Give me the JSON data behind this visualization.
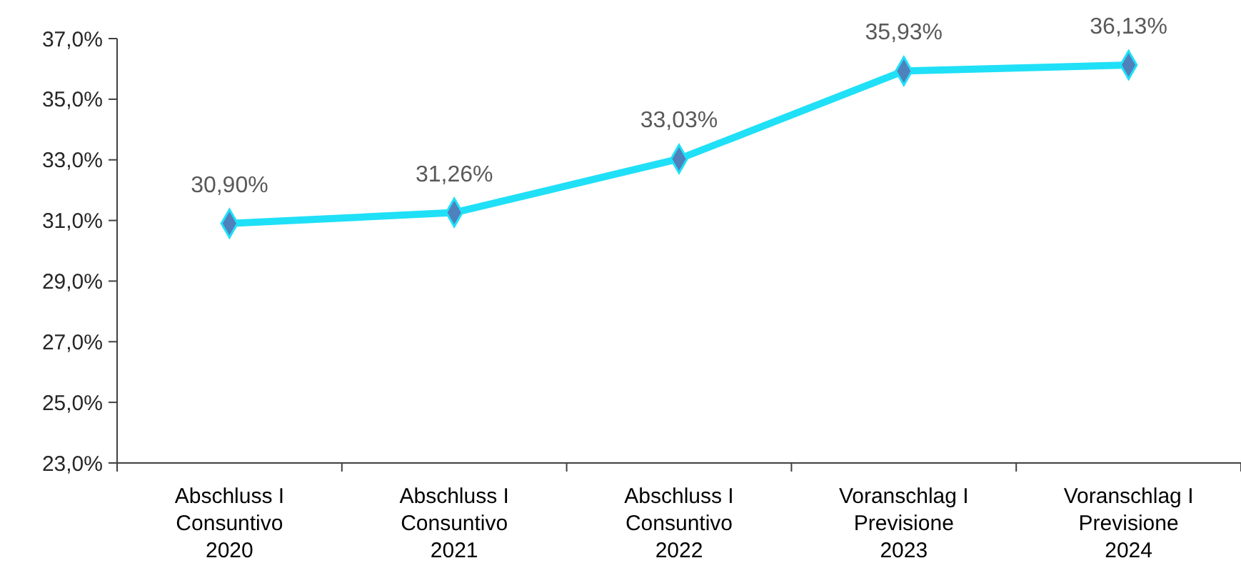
{
  "chart_data": {
    "type": "line",
    "categories": [
      "Abschluss I\nConsuntivo\n2020",
      "Abschluss I\nConsuntivo\n2021",
      "Abschluss I\nConsuntivo\n2022",
      "Voranschlag I\nPrevisione\n2023",
      "Voranschlag I\nPrevisione\n2024"
    ],
    "series": [
      {
        "color": "#1fe0f7",
        "values": [
          30.9,
          31.26,
          33.03,
          35.93,
          36.13
        ],
        "value_labels": [
          "30,90%",
          "31,26%",
          "33,03%",
          "35,93%",
          "36,13%"
        ]
      }
    ],
    "ylim": [
      23,
      37
    ],
    "yticks": [
      {
        "value": 23,
        "label": "23,0%"
      },
      {
        "value": 25,
        "label": "25,0%"
      },
      {
        "value": 27,
        "label": "27,0%"
      },
      {
        "value": 29,
        "label": "29,0%"
      },
      {
        "value": 31,
        "label": "31,0%"
      },
      {
        "value": 33,
        "label": "33,0%"
      },
      {
        "value": 35,
        "label": "35,0%"
      },
      {
        "value": 37,
        "label": "37,0%"
      }
    ],
    "marker": "diamond",
    "grid": false
  }
}
